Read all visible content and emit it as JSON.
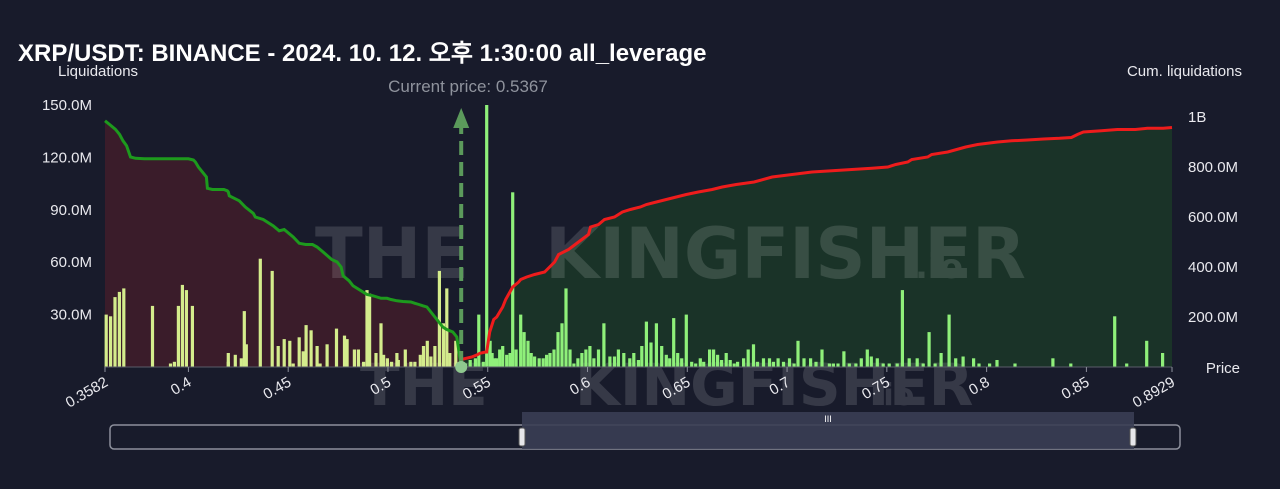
{
  "title": "XRP/USDT: BINANCE - 2024. 10. 12. 오후 1:30:00 all_leverage",
  "watermark": {
    "main": "THE",
    "brand": "KINGFISHER",
    "suffix": ".io"
  },
  "chart_data": {
    "type": "bar",
    "ylabel": "Liquidations",
    "y2label": "Cum. liquidations",
    "xlabel": "Price",
    "current_price_label": "Current price: 0.5367",
    "current_price": 0.5367,
    "xlim": [
      0.3582,
      0.8929
    ],
    "ylim": [
      0,
      150000000
    ],
    "y2lim": [
      0,
      1000000000
    ],
    "x_ticks": [
      {
        "v": 0.3582,
        "label": "0.3582"
      },
      {
        "v": 0.4,
        "label": "0.4"
      },
      {
        "v": 0.45,
        "label": "0.45"
      },
      {
        "v": 0.5,
        "label": "0.5"
      },
      {
        "v": 0.55,
        "label": "0.55"
      },
      {
        "v": 0.6,
        "label": "0.6"
      },
      {
        "v": 0.65,
        "label": "0.65"
      },
      {
        "v": 0.7,
        "label": "0.7"
      },
      {
        "v": 0.75,
        "label": "0.75"
      },
      {
        "v": 0.8,
        "label": "0.8"
      },
      {
        "v": 0.85,
        "label": "0.85"
      },
      {
        "v": 0.8929,
        "label": "0.8929"
      }
    ],
    "y_ticks": [
      {
        "v": 30000000,
        "label": "30.0M"
      },
      {
        "v": 60000000,
        "label": "60.0M"
      },
      {
        "v": 90000000,
        "label": "90.0M"
      },
      {
        "v": 120000000,
        "label": "120.0M"
      },
      {
        "v": 150000000,
        "label": "150.0M"
      }
    ],
    "y2_ticks": [
      {
        "v": 200000000,
        "label": "200.0M"
      },
      {
        "v": 400000000,
        "label": "400.0M"
      },
      {
        "v": 600000000,
        "label": "600.0M"
      },
      {
        "v": 800000000,
        "label": "800.0M"
      },
      {
        "v": 1000000000,
        "label": "1B"
      }
    ],
    "colors": {
      "bar_below": "#d4ec8c",
      "bar_above": "#8ff07a",
      "cum_below": "#1d9a1d",
      "cum_above": "#ee1c1c",
      "fill_below": "#3a1c2a",
      "fill_above": "#1a3328",
      "marker": "#5b9a5b"
    },
    "series": [
      {
        "name": "Liquidations (below price)",
        "x": [
          0.3588,
          0.361,
          0.3632,
          0.3654,
          0.3676,
          0.382,
          0.391,
          0.393,
          0.395,
          0.397,
          0.399,
          0.402,
          0.42,
          0.4235,
          0.42,
          0.4265,
          0.428,
          0.429,
          0.436,
          0.442,
          0.445,
          0.448,
          0.4508,
          0.4525,
          0.4555,
          0.4575,
          0.459,
          0.4615,
          0.4645,
          0.466,
          0.4695,
          0.4742,
          0.4782,
          0.4795,
          0.4832,
          0.4852,
          0.4878,
          0.4895,
          0.4908,
          0.494,
          0.4965,
          0.4978,
          0.4997,
          0.5018,
          0.5045,
          0.5052,
          0.5087,
          0.5115,
          0.5135,
          0.5162,
          0.5178,
          0.5197,
          0.5215,
          0.5235,
          0.5258,
          0.5278,
          0.5295,
          0.531,
          0.534
        ],
        "values": [
          30000000,
          29000000,
          40000000,
          43000000,
          45000000,
          35000000,
          2000000,
          3000000,
          35000000,
          47000000,
          44000000,
          35000000,
          3000000,
          7000000,
          8000000,
          5000000,
          32000000,
          13000000,
          62000000,
          55000000,
          12000000,
          16000000,
          15000000,
          2000000,
          17000000,
          9000000,
          24000000,
          21000000,
          12000000,
          2000000,
          13000000,
          22000000,
          18000000,
          16000000,
          10000000,
          10000000,
          3000000,
          44000000,
          42000000,
          8000000,
          25000000,
          7000000,
          5000000,
          3000000,
          8000000,
          4000000,
          10000000,
          3000000,
          3000000,
          7000000,
          12000000,
          15000000,
          6000000,
          12000000,
          55000000,
          25000000,
          45000000,
          8000000,
          15000000
        ]
      },
      {
        "name": "Liquidations (above price)",
        "x": [
          0.5388,
          0.5412,
          0.5438,
          0.5455,
          0.5478,
          0.5495,
          0.5512,
          0.5522,
          0.5535,
          0.5545,
          0.556,
          0.5575,
          0.5595,
          0.5612,
          0.5625,
          0.5642,
          0.5665,
          0.5682,
          0.5702,
          0.5718,
          0.5735,
          0.5758,
          0.5778,
          0.5795,
          0.5812,
          0.5832,
          0.5852,
          0.5872,
          0.5892,
          0.5912,
          0.5932,
          0.5952,
          0.5972,
          0.5992,
          0.6012,
          0.6032,
          0.6055,
          0.6082,
          0.6112,
          0.6135,
          0.6155,
          0.6182,
          0.6212,
          0.6232,
          0.6255,
          0.6272,
          0.6295,
          0.6318,
          0.6345,
          0.6372,
          0.6395,
          0.6412,
          0.6432,
          0.6452,
          0.6472,
          0.6495,
          0.6522,
          0.6542,
          0.6565,
          0.6582,
          0.6612,
          0.6632,
          0.6652,
          0.6672,
          0.6695,
          0.6715,
          0.6735,
          0.6752,
          0.6782,
          0.6805,
          0.6832,
          0.6852,
          0.6882,
          0.6912,
          0.6932,
          0.6955,
          0.6982,
          0.7012,
          0.7035,
          0.7055,
          0.7085,
          0.7118,
          0.7145,
          0.7175,
          0.7212,
          0.7232,
          0.7255,
          0.7285,
          0.7312,
          0.7345,
          0.7372,
          0.7402,
          0.7422,
          0.7452,
          0.7482,
          0.7512,
          0.7552,
          0.7578,
          0.7612,
          0.7652,
          0.7682,
          0.7712,
          0.7742,
          0.7772,
          0.7812,
          0.7845,
          0.7882,
          0.7935,
          0.7962,
          0.8015,
          0.8052,
          0.8142,
          0.8332,
          0.8422,
          0.8642,
          0.8702,
          0.8802,
          0.8882
        ],
        "values": [
          2000000,
          4000000,
          5000000,
          30000000,
          3000000,
          150000000,
          15000000,
          8000000,
          5000000,
          5000000,
          10000000,
          12000000,
          7000000,
          8000000,
          100000000,
          10000000,
          30000000,
          20000000,
          15000000,
          8000000,
          6000000,
          5000000,
          5000000,
          7000000,
          8000000,
          10000000,
          20000000,
          25000000,
          45000000,
          10000000,
          2000000,
          5000000,
          8000000,
          10000000,
          12000000,
          5000000,
          10000000,
          25000000,
          6000000,
          6000000,
          10000000,
          8000000,
          5000000,
          8000000,
          4000000,
          12000000,
          26000000,
          14000000,
          25000000,
          12000000,
          7000000,
          5000000,
          28000000,
          8000000,
          5000000,
          30000000,
          3000000,
          2000000,
          5000000,
          3000000,
          10000000,
          10000000,
          7000000,
          4000000,
          8000000,
          4000000,
          2000000,
          3000000,
          5000000,
          10000000,
          13000000,
          3000000,
          5000000,
          5000000,
          3000000,
          5000000,
          3000000,
          5000000,
          2000000,
          15000000,
          5000000,
          5000000,
          3000000,
          10000000,
          2000000,
          2000000,
          2000000,
          9000000,
          2000000,
          2000000,
          5000000,
          10000000,
          6000000,
          5000000,
          2000000,
          2000000,
          2000000,
          44000000,
          5000000,
          5000000,
          2000000,
          20000000,
          2000000,
          8000000,
          30000000,
          5000000,
          6000000,
          5000000,
          2000000,
          2000000,
          4000000,
          2000000,
          5000000,
          2000000,
          29000000,
          2000000,
          15000000,
          8000000
        ]
      }
    ],
    "cumulative": [
      {
        "name": "Cum. liquidations (below price)",
        "x": [
          0.3582,
          0.3605,
          0.3635,
          0.3655,
          0.3672,
          0.369,
          0.371,
          0.3735,
          0.378,
          0.385,
          0.395,
          0.398,
          0.4,
          0.4025,
          0.4035,
          0.405,
          0.409,
          0.4095,
          0.412,
          0.4178,
          0.4195,
          0.42,
          0.4205,
          0.4255,
          0.4285,
          0.4325,
          0.4335,
          0.4375,
          0.4425,
          0.4455,
          0.448,
          0.4525,
          0.4555,
          0.4588,
          0.4622,
          0.4645,
          0.4675,
          0.4718,
          0.4745,
          0.4765,
          0.4775,
          0.4805,
          0.4825,
          0.4855,
          0.4875,
          0.4895,
          0.4925,
          0.4945,
          0.4965,
          0.4995,
          0.5015,
          0.5045,
          0.5075,
          0.5115,
          0.5135,
          0.5155,
          0.5175,
          0.5195,
          0.5215,
          0.5235,
          0.5255,
          0.5275,
          0.5295,
          0.5325,
          0.5345,
          0.5367
        ],
        "values": [
          985000000,
          970000000,
          950000000,
          930000000,
          905000000,
          885000000,
          840000000,
          835000000,
          833000000,
          833000000,
          833000000,
          833000000,
          833000000,
          828000000,
          820000000,
          800000000,
          760000000,
          715000000,
          710000000,
          710000000,
          705000000,
          700000000,
          685000000,
          665000000,
          640000000,
          615000000,
          600000000,
          590000000,
          565000000,
          545000000,
          550000000,
          520000000,
          495000000,
          490000000,
          490000000,
          480000000,
          460000000,
          430000000,
          420000000,
          400000000,
          365000000,
          345000000,
          325000000,
          310000000,
          300000000,
          290000000,
          285000000,
          280000000,
          275000000,
          275000000,
          270000000,
          265000000,
          262000000,
          260000000,
          255000000,
          250000000,
          245000000,
          240000000,
          220000000,
          200000000,
          180000000,
          160000000,
          150000000,
          140000000,
          120000000,
          0
        ]
      },
      {
        "name": "Cum. liquidations (above price)",
        "x": [
          0.5367,
          0.542,
          0.545,
          0.546,
          0.549,
          0.5495,
          0.551,
          0.553,
          0.5545,
          0.556,
          0.5575,
          0.559,
          0.5625,
          0.5655,
          0.5665,
          0.5695,
          0.5735,
          0.5785,
          0.5835,
          0.5855,
          0.5905,
          0.5955,
          0.6005,
          0.6015,
          0.6055,
          0.6085,
          0.6135,
          0.6175,
          0.6215,
          0.6265,
          0.6295,
          0.6345,
          0.6395,
          0.6445,
          0.6495,
          0.6555,
          0.6625,
          0.6675,
          0.6745,
          0.6835,
          0.6925,
          0.7025,
          0.7125,
          0.7225,
          0.7325,
          0.7425,
          0.7505,
          0.7545,
          0.7605,
          0.7625,
          0.7705,
          0.7725,
          0.7805,
          0.7895,
          0.7955,
          0.8055,
          0.8125,
          0.8205,
          0.8285,
          0.8365,
          0.8425,
          0.8455,
          0.8485,
          0.8575,
          0.8655,
          0.8745,
          0.8805,
          0.8885,
          0.8929
        ],
        "values": [
          30000000,
          40000000,
          50000000,
          55000000,
          60000000,
          60000000,
          140000000,
          190000000,
          200000000,
          220000000,
          240000000,
          270000000,
          320000000,
          340000000,
          350000000,
          360000000,
          370000000,
          380000000,
          420000000,
          450000000,
          470000000,
          500000000,
          530000000,
          560000000,
          570000000,
          590000000,
          600000000,
          620000000,
          630000000,
          640000000,
          650000000,
          660000000,
          670000000,
          680000000,
          690000000,
          700000000,
          710000000,
          720000000,
          730000000,
          740000000,
          760000000,
          770000000,
          780000000,
          785000000,
          790000000,
          795000000,
          800000000,
          810000000,
          820000000,
          830000000,
          840000000,
          850000000,
          860000000,
          880000000,
          890000000,
          900000000,
          905000000,
          908000000,
          912000000,
          915000000,
          918000000,
          930000000,
          940000000,
          945000000,
          950000000,
          950000000,
          955000000,
          955000000,
          958000000
        ]
      }
    ]
  },
  "range_slider": {
    "grip_label": "III"
  }
}
